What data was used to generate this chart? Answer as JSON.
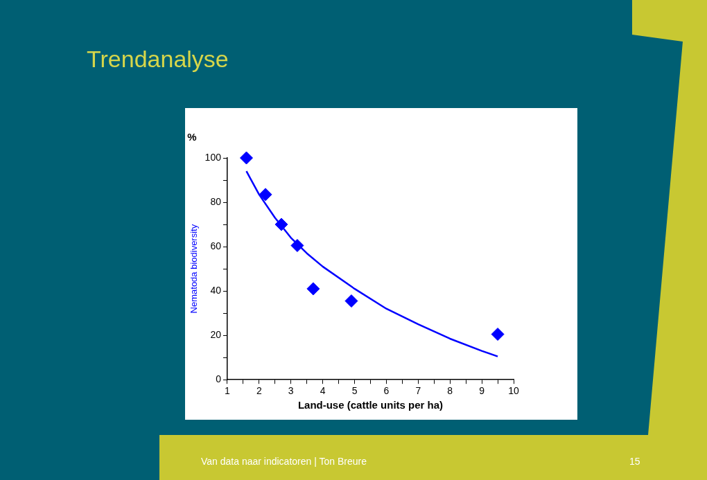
{
  "chart_data": {
    "type": "scatter",
    "title": "Trendanalyse",
    "xlabel": "Land-use (cattle units per ha)",
    "ylabel": "Nematoda biodiversity",
    "annotations": [
      "%",
      "Van data naar indicatoren | Ton Breure",
      "15"
    ],
    "series": [
      {
        "type": "scatter",
        "color": "#0000ff",
        "marker": "diamond",
        "x": [
          1.6,
          2.2,
          2.7,
          3.2,
          3.7,
          4.9,
          9.5
        ],
        "values": [
          100,
          83.5,
          70,
          60.5,
          41,
          35.5,
          20.5
        ]
      },
      {
        "type": "line",
        "color": "#0000ff",
        "marker": "none",
        "line_style": "solid",
        "x": [
          1.6,
          2,
          2.5,
          3,
          3.5,
          4,
          5,
          6,
          7,
          8,
          9,
          9.5
        ],
        "values": [
          94,
          83.5,
          73,
          64,
          57,
          51,
          41,
          32,
          25,
          18.5,
          13,
          10.5
        ]
      }
    ],
    "xlim": [
      1,
      10
    ],
    "xticks": [
      1,
      {
        "value": 1.5,
        "label": null
      },
      2,
      {
        "value": 2.5,
        "label": null
      },
      3,
      {
        "value": 3.5,
        "label": null
      },
      4,
      {
        "value": 4.5,
        "label": null
      },
      5,
      {
        "value": 5.5,
        "label": null
      },
      6,
      {
        "value": 6.5,
        "label": null
      },
      7,
      {
        "value": 7.5,
        "label": null
      },
      8,
      {
        "value": 8.5,
        "label": null
      },
      9,
      {
        "value": 9.5,
        "label": null
      },
      10
    ],
    "ylim": [
      0,
      100
    ],
    "yticks": [
      0,
      {
        "value": 10,
        "label": null
      },
      20,
      {
        "value": 30,
        "label": null
      },
      40,
      {
        "value": 50,
        "label": null
      },
      60,
      {
        "value": 70,
        "label": null
      },
      80,
      {
        "value": 90,
        "label": null
      },
      100
    ],
    "grid": false,
    "legend": false
  }
}
